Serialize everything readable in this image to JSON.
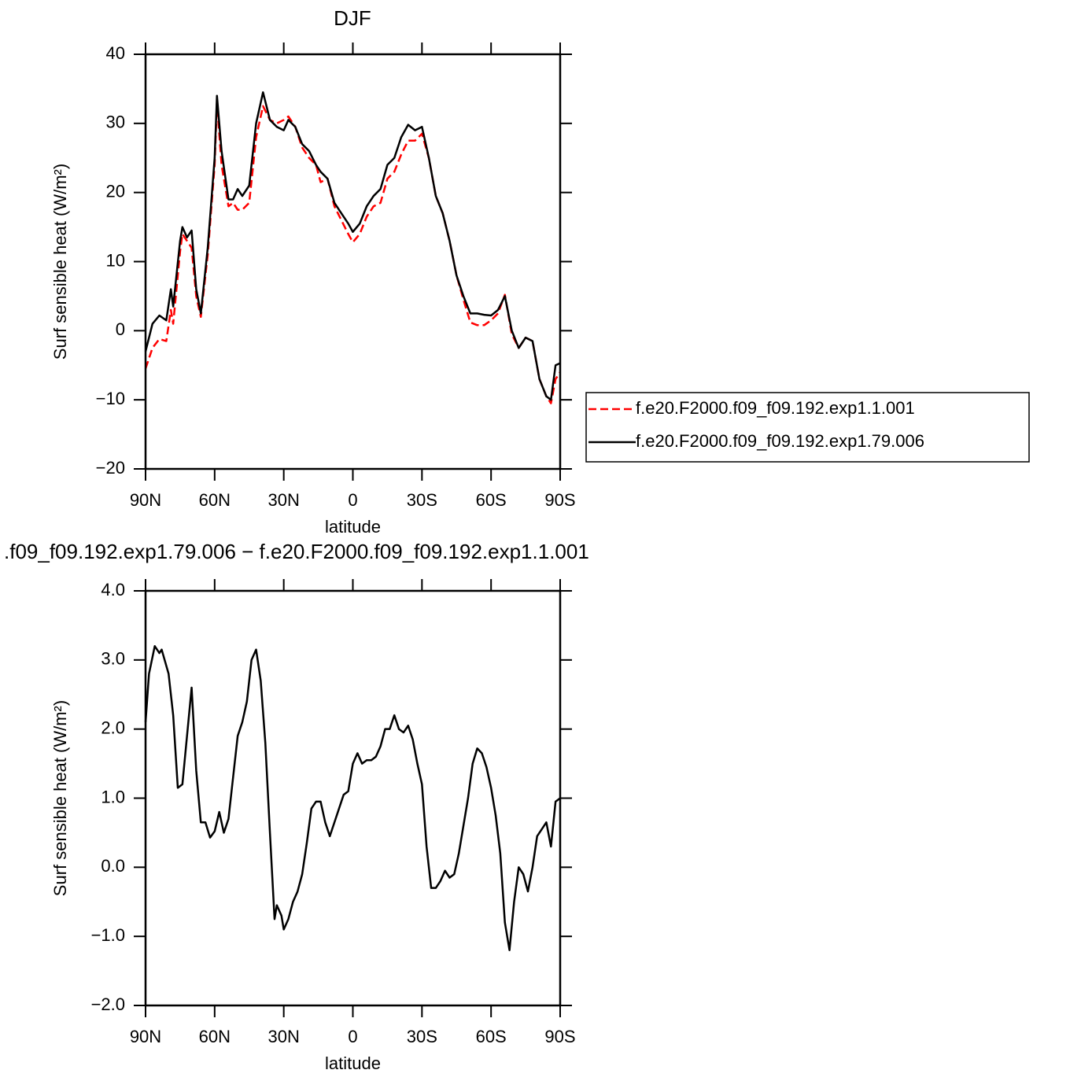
{
  "chart_data": [
    {
      "type": "line",
      "title": "DJF",
      "xlabel": "latitude",
      "ylabel": "Surf sensible heat (W/m²)",
      "xlim": [
        90,
        -90
      ],
      "xticks": [
        {
          "value": 90,
          "label": "90N"
        },
        {
          "value": 60,
          "label": "60N"
        },
        {
          "value": 30,
          "label": "30N"
        },
        0,
        {
          "value": -30,
          "label": "30S"
        },
        {
          "value": -60,
          "label": "60S"
        },
        {
          "value": -90,
          "label": "90S"
        }
      ],
      "ylim": [
        -20,
        40
      ],
      "yticks": [
        40,
        30,
        20,
        10,
        0,
        {
          "value": -10,
          "label": "−10"
        },
        {
          "value": -20,
          "label": "−20"
        }
      ],
      "legend": "right",
      "x": [
        90,
        87,
        84,
        81,
        79,
        78,
        75,
        74,
        72,
        70,
        68,
        66,
        63,
        60,
        59,
        57,
        54,
        52,
        50,
        48,
        45,
        42,
        39,
        36,
        33,
        30,
        28,
        25,
        22,
        19,
        16,
        14,
        11,
        8,
        5,
        2,
        0,
        -3,
        -6,
        -9,
        -12,
        -15,
        -18,
        -21,
        -24,
        -27,
        -30,
        -33,
        -36,
        -39,
        -42,
        -45,
        -48,
        -51,
        -54,
        -57,
        -60,
        -63,
        -66,
        -69,
        -72,
        -75,
        -78,
        -81,
        -84,
        -86,
        -88,
        -90
      ],
      "series": [
        {
          "name": "f.e20.F2000.f09_f09.192.exp1.1.001",
          "color": "#ff0000",
          "line_style": "dashed",
          "values": [
            -5.5,
            -2.5,
            -1.2,
            -1.5,
            3,
            1,
            11.5,
            14,
            13,
            12,
            5,
            2,
            11,
            24,
            33,
            24,
            18,
            18.5,
            17.5,
            17.5,
            18.5,
            28,
            32.5,
            30.5,
            30,
            30.5,
            31,
            29.5,
            26.5,
            25,
            24,
            21.5,
            22,
            18,
            16,
            14,
            12.8,
            14,
            16.5,
            18,
            18.5,
            22,
            23,
            25.5,
            27.5,
            27.5,
            28.5,
            25,
            19.5,
            17,
            13,
            8,
            4.5,
            1.2,
            0.8,
            0.8,
            1.5,
            2.5,
            5.2,
            -0.5,
            -2.5,
            -1,
            -1.5,
            -7,
            -9.5,
            -10.5,
            -7,
            -6
          ]
        },
        {
          "name": "f.e20.F2000.f09_f09.192.exp1.79.006",
          "color": "#000000",
          "line_style": "solid",
          "values": [
            -3,
            1,
            2.2,
            1.5,
            6,
            3.5,
            13,
            15,
            13.5,
            14.5,
            6,
            2.5,
            12,
            25,
            34,
            26,
            19,
            19,
            20.5,
            19.5,
            21,
            30,
            34.5,
            30.5,
            29.5,
            29,
            30.5,
            29.5,
            27,
            26,
            24,
            23,
            22,
            18.5,
            17,
            15.5,
            14.3,
            15.5,
            18,
            19.5,
            20.5,
            24,
            25,
            28,
            29.8,
            29,
            29.5,
            25,
            19.5,
            17,
            13,
            8,
            5,
            2.5,
            2.5,
            2.3,
            2.2,
            3,
            5,
            0,
            -2.5,
            -1,
            -1.5,
            -7,
            -9.5,
            -10,
            -5,
            -4.7
          ]
        }
      ]
    },
    {
      "type": "line",
      "title": ".f09_f09.192.exp1.79.006 − f.e20.F2000.f09_f09.192.exp1.1.001",
      "xlabel": "latitude",
      "ylabel": "Surf sensible heat (W/m²)",
      "xlim": [
        90,
        -90
      ],
      "xticks": [
        {
          "value": 90,
          "label": "90N"
        },
        {
          "value": 60,
          "label": "60N"
        },
        {
          "value": 30,
          "label": "30N"
        },
        0,
        {
          "value": -30,
          "label": "30S"
        },
        {
          "value": -60,
          "label": "60S"
        },
        {
          "value": -90,
          "label": "90S"
        }
      ],
      "ylim": [
        -2,
        4
      ],
      "yticks": [
        {
          "value": 4,
          "label": "4.0"
        },
        {
          "value": 3,
          "label": "3.0"
        },
        {
          "value": 2,
          "label": "2.0"
        },
        {
          "value": 1,
          "label": "1.0"
        },
        {
          "value": 0,
          "label": "0.0"
        },
        {
          "value": -1,
          "label": "−1.0"
        },
        {
          "value": -2,
          "label": "−2.0"
        }
      ],
      "x": [
        90,
        88.5,
        86,
        84,
        83,
        80,
        78,
        76,
        74,
        72,
        70,
        68,
        66,
        64,
        62,
        60,
        58,
        56,
        54,
        52,
        50,
        48,
        46,
        44,
        42,
        40,
        38,
        36,
        34,
        33,
        31,
        30,
        28,
        26,
        24,
        22,
        20,
        18,
        16,
        14,
        12,
        10,
        8,
        6,
        4,
        2,
        0,
        -2,
        -4,
        -6,
        -8,
        -10,
        -12,
        -14,
        -16,
        -18,
        -20,
        -22,
        -24,
        -26,
        -28,
        -30,
        -32,
        -34,
        -36,
        -38,
        -40,
        -42,
        -44,
        -46,
        -48,
        -50,
        -52,
        -54,
        -56,
        -58,
        -60,
        -62,
        -64,
        -66,
        -68,
        -70,
        -72,
        -74,
        -76,
        -78,
        -80,
        -82,
        -84,
        -86,
        -88,
        -90
      ],
      "color": "#000000",
      "values": [
        2.1,
        2.8,
        3.2,
        3.1,
        3.15,
        2.8,
        2.2,
        1.15,
        1.2,
        1.9,
        2.6,
        1.4,
        0.65,
        0.65,
        0.43,
        0.52,
        0.8,
        0.5,
        0.7,
        1.3,
        1.9,
        2.1,
        2.4,
        3.0,
        3.15,
        2.7,
        1.8,
        0.5,
        -0.75,
        -0.55,
        -0.7,
        -0.9,
        -0.75,
        -0.5,
        -0.35,
        -0.1,
        0.35,
        0.85,
        0.95,
        0.95,
        0.65,
        0.45,
        0.65,
        0.85,
        1.05,
        1.1,
        1.5,
        1.65,
        1.5,
        1.55,
        1.55,
        1.6,
        1.75,
        2.0,
        2.0,
        2.2,
        2.0,
        1.95,
        2.05,
        1.85,
        1.5,
        1.2,
        0.3,
        -0.3,
        -0.3,
        -0.2,
        -0.05,
        -0.15,
        -0.1,
        0.2,
        0.6,
        1.0,
        1.5,
        1.72,
        1.65,
        1.45,
        1.15,
        0.75,
        0.2,
        -0.8,
        -1.2,
        -0.5,
        0.0,
        -0.1,
        -0.35,
        0.0,
        0.45,
        0.55,
        0.65,
        0.3,
        0.95,
        1.0
      ]
    }
  ]
}
